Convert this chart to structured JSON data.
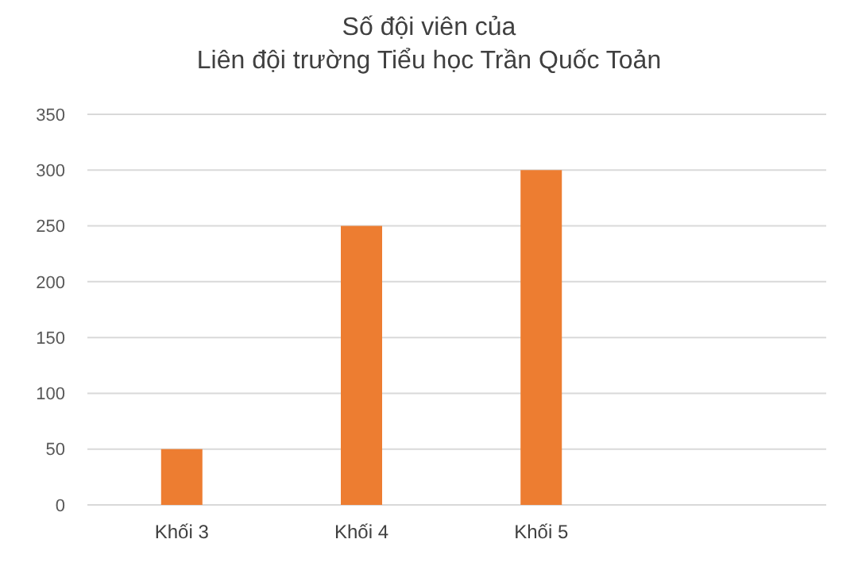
{
  "chart_data": {
    "type": "bar",
    "title": "Số đội viên của\nLiên đội trường Tiểu học Trần Quốc Toản",
    "categories": [
      "Khối 3",
      "Khối 4",
      "Khối 5"
    ],
    "values": [
      50,
      250,
      300
    ],
    "color": "#ed7d31",
    "ylim": [
      0,
      350
    ],
    "yticks": [
      0,
      50,
      100,
      150,
      200,
      250,
      300,
      350
    ],
    "grid": "y"
  }
}
